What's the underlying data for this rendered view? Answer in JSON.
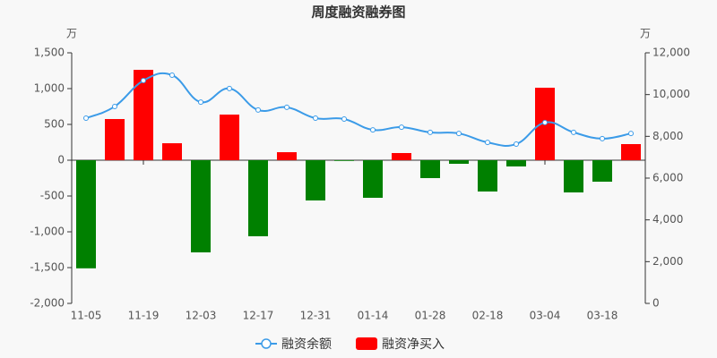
{
  "chart_data": {
    "type": "bar-line",
    "title": "周度融资融券图",
    "y_unit": "万",
    "y2_unit": "万",
    "categories": [
      "11-05",
      null,
      "11-19",
      null,
      "12-03",
      null,
      "12-17",
      null,
      "12-31",
      null,
      "01-14",
      null,
      "01-28",
      null,
      "02-18",
      null,
      "03-04",
      null,
      "03-18",
      null
    ],
    "series": [
      {
        "name": "融资余额",
        "type": "line",
        "axis": "y2",
        "color": "#3b9be8",
        "values": [
          8870,
          9430,
          10670,
          10930,
          9640,
          10290,
          9260,
          9390,
          8870,
          8830,
          8310,
          8440,
          8190,
          8140,
          7710,
          7630,
          8660,
          8190,
          7890,
          8140
        ]
      },
      {
        "name": "融资净买入",
        "type": "bar",
        "color": "#ff0000",
        "negative_color": "#008000",
        "values": [
          -1510,
          575,
          1262,
          237,
          -1287,
          637,
          -1062,
          112,
          -562,
          -10,
          -525,
          100,
          -250,
          -50,
          -437,
          -87,
          1012,
          -450,
          -300,
          225
        ]
      }
    ],
    "ylim": [
      -2000,
      1500
    ],
    "yticks": [
      {
        "value": -2000,
        "label": "-2,000"
      },
      {
        "value": -1500,
        "label": "-1,500"
      },
      {
        "value": -1000,
        "label": "-1,000"
      },
      -500,
      0,
      500,
      {
        "value": 1000,
        "label": "1,000"
      },
      {
        "value": 1500,
        "label": "1,500"
      }
    ],
    "y2lim": [
      0,
      12000
    ],
    "y2ticks": [
      0,
      {
        "value": 2000,
        "label": "2,000"
      },
      {
        "value": 4000,
        "label": "4,000"
      },
      {
        "value": 6000,
        "label": "6,000"
      },
      {
        "value": 8000,
        "label": "8,000"
      },
      {
        "value": 10000,
        "label": "10,000"
      },
      {
        "value": 12000,
        "label": "12,000"
      }
    ]
  }
}
